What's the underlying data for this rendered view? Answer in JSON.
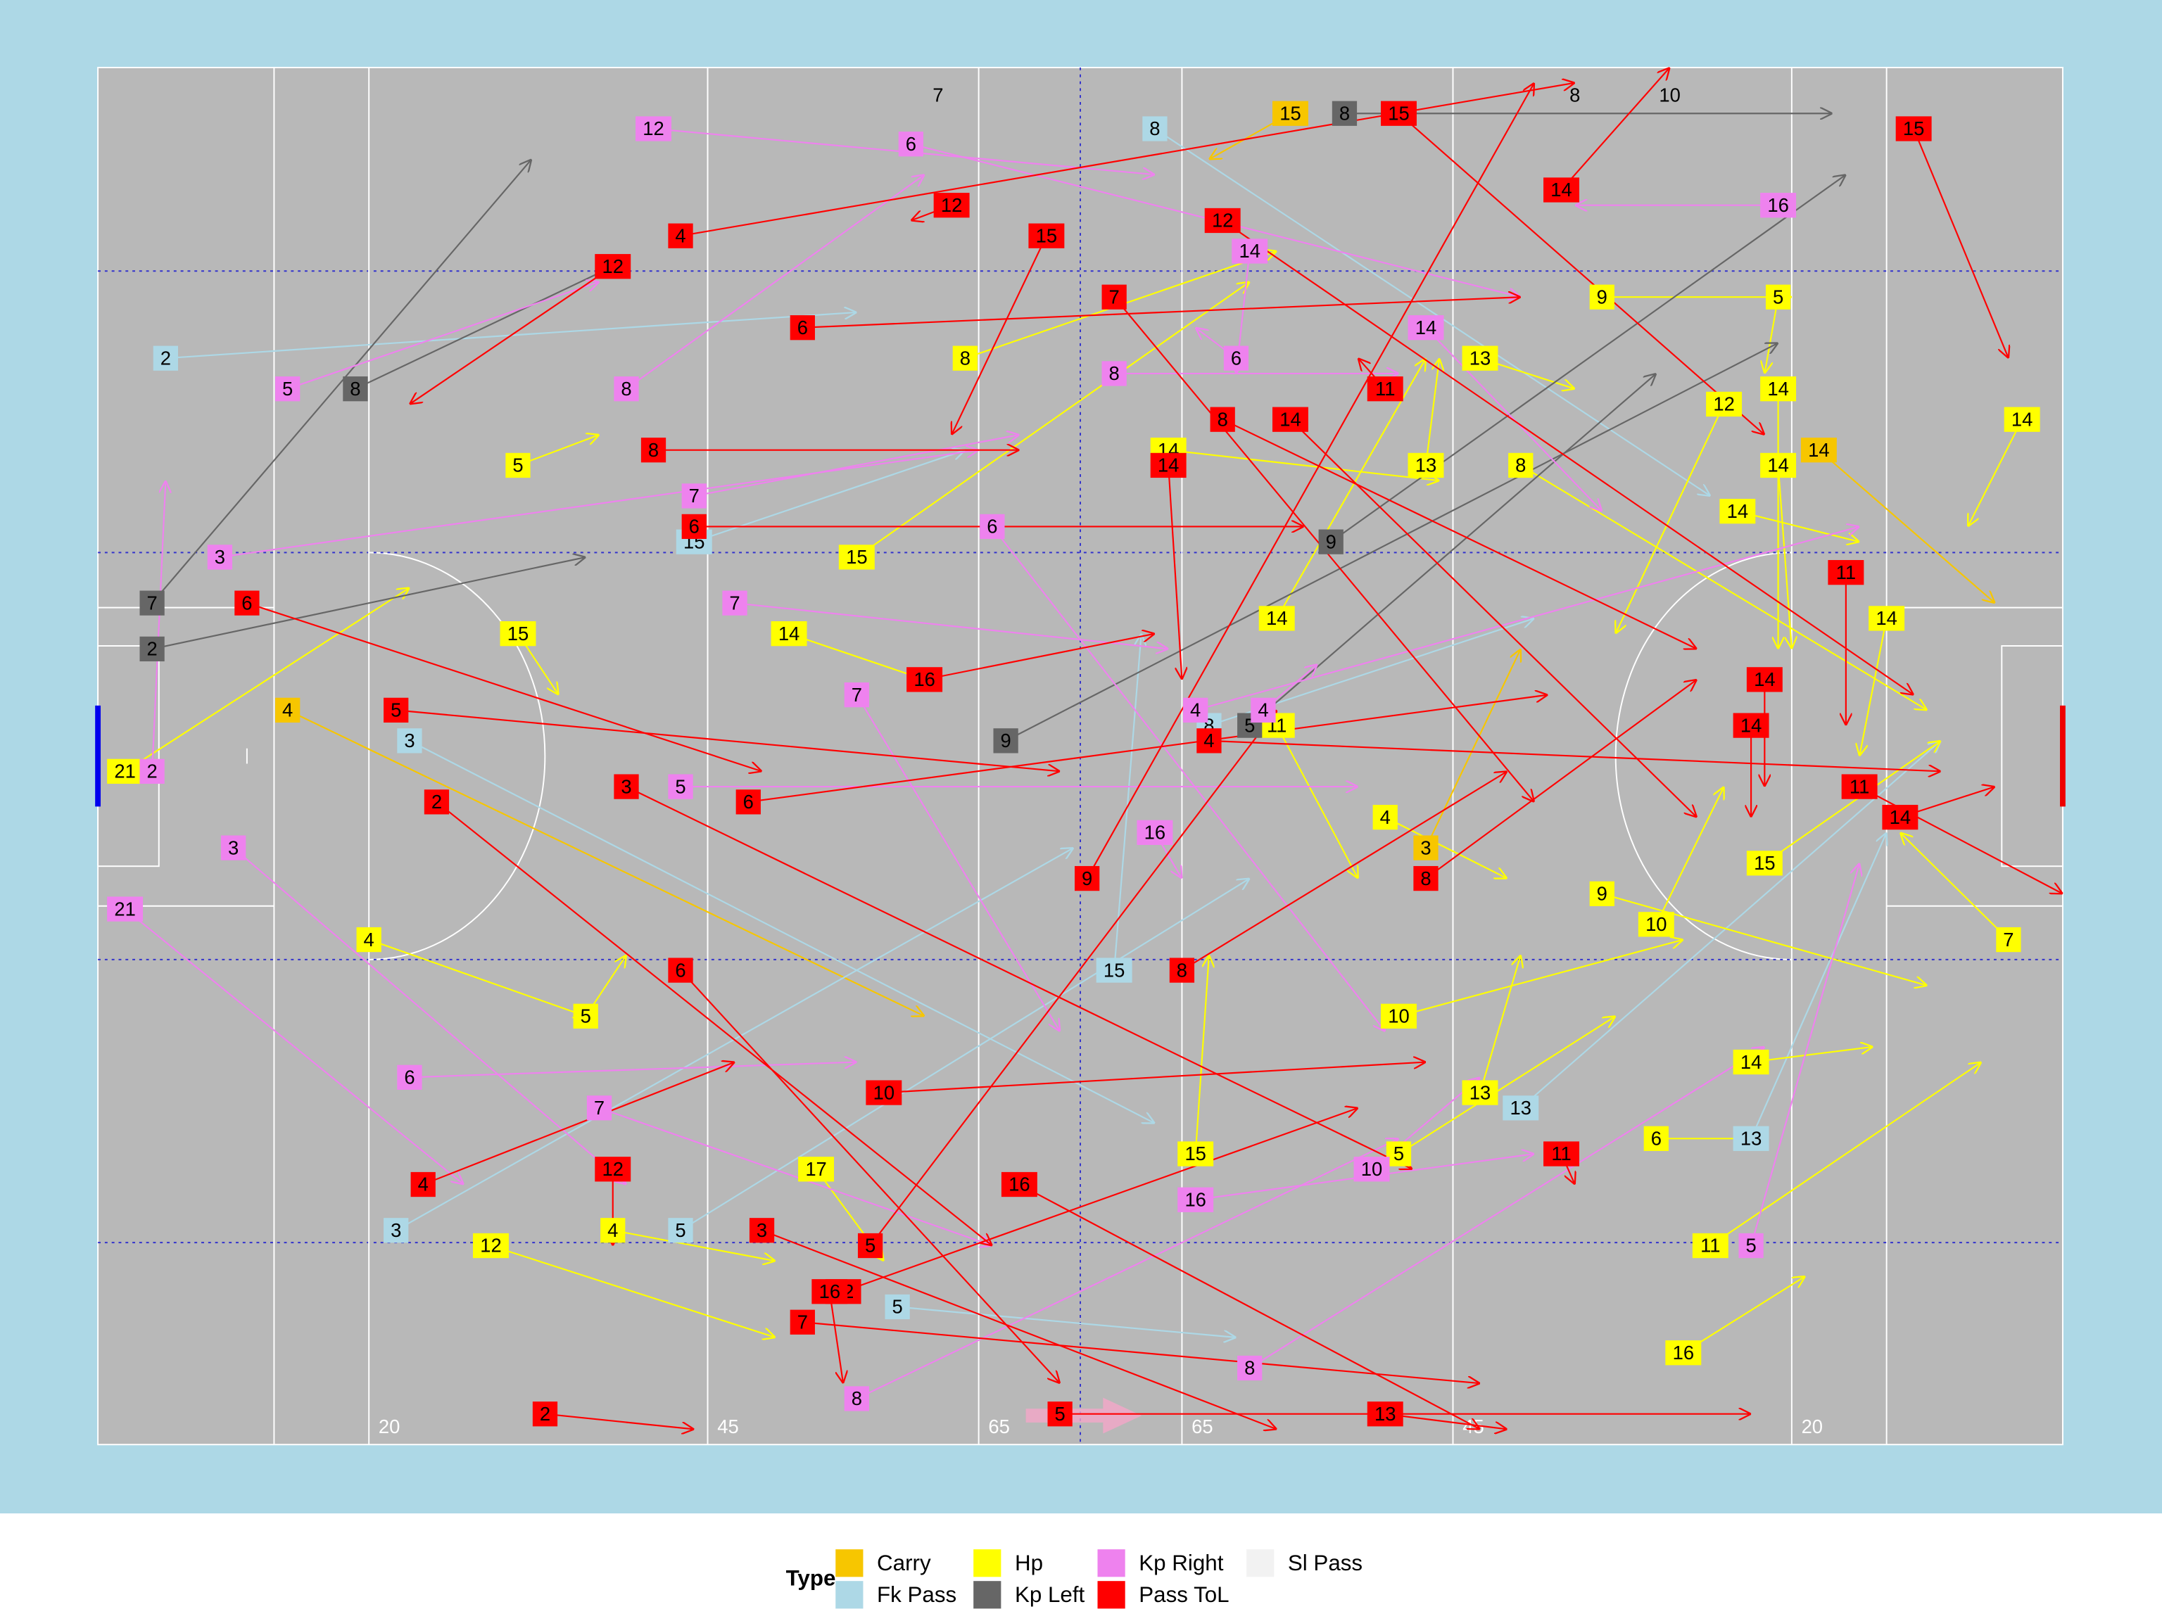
{
  "chart_data": {
    "type": "arrow_map",
    "legend_title": "Type",
    "xlim": [
      0,
      145
    ],
    "ylim": [
      0,
      90
    ],
    "xticks": [
      20,
      45,
      65,
      {
        "value": 80,
        "label": "65"
      },
      {
        "value": 100,
        "label": "45"
      },
      {
        "value": 125,
        "label": "20"
      }
    ],
    "series": [
      {
        "name": "Carry",
        "color": "#f7c600",
        "labels": [
          15,
          4,
          3,
          14
        ],
        "x": [
          88,
          14,
          98,
          127
        ],
        "y": [
          3,
          42,
          51,
          25
        ],
        "xend": [
          82,
          61,
          105,
          140
        ],
        "yend": [
          6,
          62,
          38,
          35
        ]
      },
      {
        "name": "Fk Pass",
        "color": "#add8e6",
        "labels": [
          8,
          2,
          15,
          3,
          3,
          5,
          15,
          13,
          13,
          5,
          8
        ],
        "x": [
          78,
          5,
          44,
          23,
          22,
          43,
          75,
          105,
          122,
          59,
          82
        ],
        "y": [
          4,
          19,
          31,
          44,
          76,
          76,
          59,
          68,
          70,
          81,
          43
        ],
        "xend": [
          119,
          56,
          64,
          78,
          72,
          85,
          77,
          136,
          132,
          84,
          106
        ],
        "yend": [
          28,
          16,
          25,
          69,
          51,
          53,
          37,
          44,
          50,
          83,
          36
        ]
      },
      {
        "name": "Hp",
        "color": "#ffff00",
        "labels": [
          8,
          15,
          5,
          15,
          14,
          14,
          13,
          13,
          14,
          9,
          5,
          14,
          12,
          8,
          14,
          14,
          14,
          14,
          11,
          4,
          21,
          9,
          10,
          15,
          10,
          13,
          5,
          15,
          17,
          4,
          12,
          6,
          14,
          11,
          16,
          7,
          4,
          5
        ],
        "x": [
          64,
          56,
          31,
          31,
          51,
          79,
          98,
          102,
          87,
          111,
          124,
          124,
          120,
          105,
          124,
          121,
          132,
          142,
          87,
          95,
          2,
          111,
          115,
          123,
          96,
          102,
          96,
          81,
          53,
          38,
          29,
          115,
          122,
          119,
          117,
          141,
          20,
          36
        ],
        "y": [
          19,
          32,
          26,
          37,
          37,
          25,
          26,
          19,
          36,
          15,
          15,
          21,
          22,
          26,
          26,
          29,
          36,
          23,
          43,
          49,
          46,
          54,
          56,
          52,
          62,
          67,
          71,
          71,
          72,
          76,
          77,
          70,
          65,
          77,
          84,
          57,
          57,
          62
        ],
        "xend": [
          87,
          85,
          37,
          34,
          61,
          99,
          99,
          109,
          98,
          125,
          123,
          124,
          112,
          135,
          125,
          130,
          130,
          138,
          93,
          104,
          23,
          135,
          120,
          136,
          117,
          105,
          112,
          82,
          58,
          50,
          50,
          122,
          131,
          139,
          126,
          133,
          36,
          39
        ],
        "yend": [
          12,
          14,
          24,
          41,
          40,
          27,
          19,
          21,
          19,
          15,
          20,
          38,
          37,
          42,
          38,
          31,
          45,
          30,
          53,
          53,
          34,
          60,
          47,
          44,
          57,
          58,
          62,
          58,
          78,
          78,
          83,
          70,
          64,
          65,
          79,
          50,
          62,
          58
        ]
      },
      {
        "name": "Kp Left",
        "color": "#666666",
        "labels": [
          7,
          2,
          8,
          8,
          9,
          9,
          5
        ],
        "x": [
          4,
          4,
          19,
          92,
          91,
          67,
          85
        ],
        "y": [
          35,
          38,
          21,
          3,
          31,
          44,
          43
        ],
        "xend": [
          32,
          36,
          38,
          128,
          129,
          124,
          115
        ],
        "yend": [
          6,
          32,
          13,
          3,
          7,
          18,
          20
        ]
      },
      {
        "name": "Kp Right",
        "color": "#ee82ee",
        "labels": [
          12,
          6,
          16,
          14,
          14,
          5,
          8,
          8,
          6,
          7,
          3,
          6,
          7,
          7,
          4,
          4,
          5,
          16,
          3,
          21,
          6,
          7,
          16,
          10,
          8,
          8,
          5,
          2
        ],
        "x": [
          41,
          60,
          124,
          85,
          98,
          14,
          39,
          75,
          84,
          44,
          9,
          66,
          47,
          56,
          81,
          86,
          43,
          78,
          10,
          2,
          23,
          37,
          81,
          94,
          85,
          56,
          122,
          4
        ],
        "y": [
          4,
          5,
          9,
          12,
          17,
          21,
          21,
          20,
          19,
          28,
          32,
          30,
          35,
          41,
          42,
          42,
          47,
          50,
          51,
          55,
          66,
          68,
          74,
          72,
          85,
          87,
          77,
          46
        ],
        "xend": [
          78,
          105,
          109,
          84,
          111,
          37,
          61,
          96,
          81,
          68,
          65,
          95,
          79,
          71,
          130,
          90,
          93,
          80,
          39,
          27,
          56,
          66,
          106,
          102,
          123,
          96,
          130,
          5
        ],
        "yend": [
          7,
          15,
          9,
          20,
          29,
          14,
          7,
          20,
          17,
          24,
          25,
          63,
          38,
          63,
          30,
          39,
          47,
          53,
          73,
          73,
          65,
          77,
          71,
          66,
          64,
          70,
          52,
          27
        ]
      },
      {
        "name": "Pass ToL",
        "color": "#ff0000",
        "labels": [
          4,
          12,
          15,
          15,
          14,
          12,
          15,
          12,
          6,
          7,
          11,
          8,
          14,
          8,
          14,
          6,
          6,
          5,
          4,
          16,
          6,
          2,
          3,
          9,
          8,
          8,
          6,
          10,
          4,
          12,
          3,
          5,
          16,
          12,
          16,
          7,
          5,
          13,
          2,
          11,
          14,
          14,
          11,
          11,
          14
        ],
        "x": [
          43,
          63,
          96,
          134,
          108,
          83,
          70,
          38,
          52,
          75,
          95,
          83,
          88,
          41,
          79,
          44,
          11,
          22,
          82,
          61,
          48,
          25,
          39,
          73,
          80,
          98,
          43,
          58,
          24,
          38,
          49,
          57,
          68,
          55,
          54,
          52,
          71,
          95,
          33,
          108,
          123,
          122,
          129,
          130,
          133
        ],
        "y": [
          11,
          9,
          3,
          4,
          8,
          10,
          11,
          13,
          17,
          15,
          21,
          23,
          23,
          25,
          26,
          30,
          35,
          42,
          44,
          40,
          48,
          48,
          47,
          53,
          59,
          53,
          59,
          67,
          73,
          72,
          76,
          77,
          73,
          80,
          80,
          82,
          88,
          88,
          88,
          71,
          40,
          43,
          33,
          47,
          49
        ],
        "xend": [
          109,
          60,
          123,
          141,
          116,
          134,
          63,
          23,
          105,
          106,
          93,
          118,
          118,
          68,
          80,
          89,
          49,
          71,
          136,
          78,
          107,
          66,
          97,
          106,
          104,
          118,
          71,
          98,
          47,
          38,
          87,
          87,
          102,
          93,
          55,
          102,
          122,
          104,
          44,
          109,
          123,
          122,
          129,
          145,
          140
        ],
        "yend": [
          1,
          10,
          24,
          19,
          0,
          41,
          24,
          22,
          15,
          48,
          19,
          38,
          49,
          25,
          40,
          30,
          46,
          46,
          46,
          37,
          41,
          77,
          72,
          1,
          46,
          40,
          86,
          65,
          65,
          77,
          89,
          42,
          89,
          68,
          86,
          86,
          88,
          89,
          89,
          73,
          47,
          49,
          43,
          54,
          47
        ]
      },
      {
        "name": "Sl Pass",
        "color": "#f2f2f2"
      }
    ],
    "annotations": [
      {
        "text": 7,
        "x": 62,
        "y": 1
      },
      {
        "text": 8,
        "x": 109,
        "y": 1
      },
      {
        "text": 10,
        "x": 116,
        "y": 1
      }
    ]
  }
}
